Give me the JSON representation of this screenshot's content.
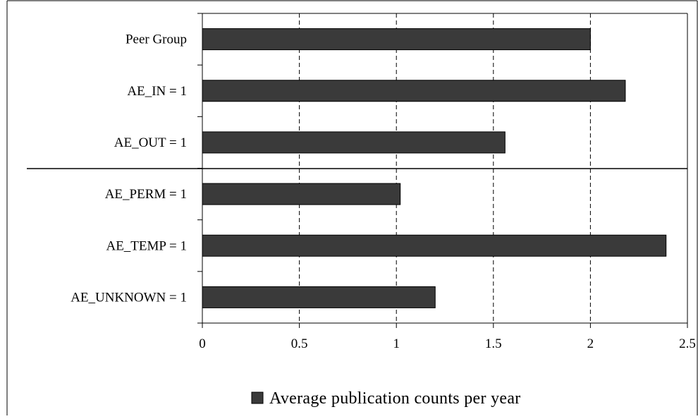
{
  "chart_data": {
    "type": "bar",
    "orientation": "horizontal",
    "categories": [
      "Peer Group",
      "AE_IN = 1",
      "AE_OUT = 1",
      "AE_PERM = 1",
      "AE_TEMP = 1",
      "AE_UNKNOWN = 1"
    ],
    "series": [
      {
        "name": "Average publication counts per year",
        "values": [
          2.0,
          2.18,
          1.56,
          1.02,
          2.39,
          1.2
        ]
      }
    ],
    "xlim": [
      0,
      2.5
    ],
    "xticks": [
      0,
      0.5,
      1,
      1.5,
      2,
      2.5
    ],
    "xtick_labels": [
      "0",
      "0.5",
      "1",
      "1.5",
      "2",
      "2.5"
    ],
    "grid": "vertical dashed",
    "legend_position": "bottom-center",
    "separator_after_category": "AE_OUT = 1",
    "title": "",
    "xlabel": "",
    "ylabel": "",
    "colors": {
      "bar": "#3a3a3a",
      "bar_stroke": "#000000",
      "grid": "#000000"
    }
  }
}
